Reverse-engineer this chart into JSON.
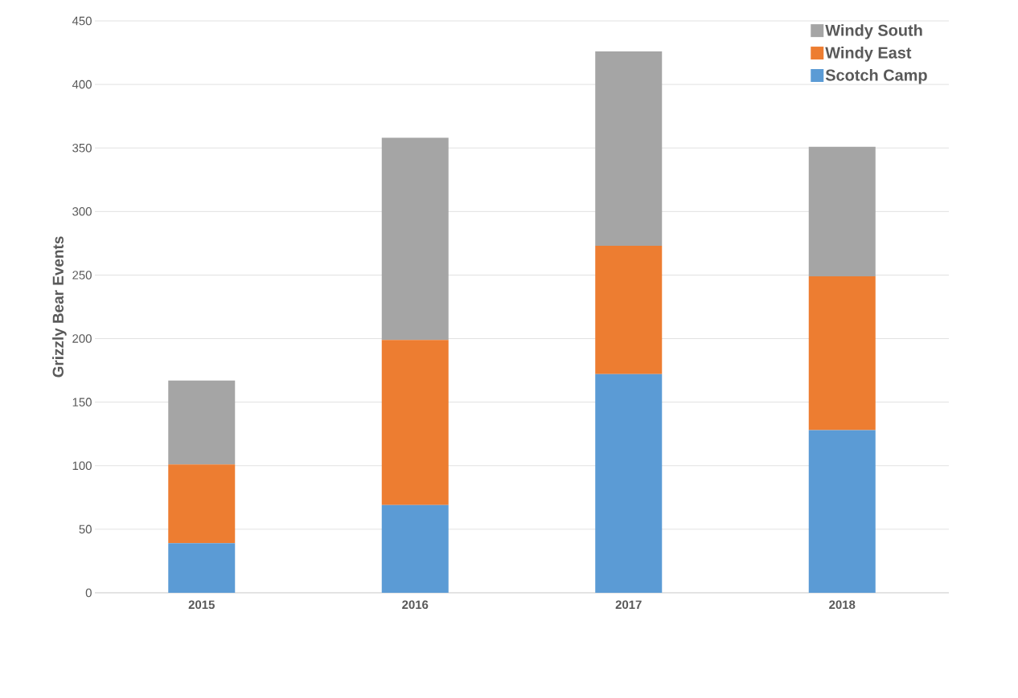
{
  "chart_data": {
    "type": "bar",
    "stacked": true,
    "ylabel": "Grizzly Bear Events",
    "categories": [
      "2015",
      "2016",
      "2017",
      "2018"
    ],
    "series": [
      {
        "name": "Scotch Camp",
        "color": "#5b9bd5",
        "values": [
          39,
          69,
          172,
          128
        ]
      },
      {
        "name": "Windy East",
        "color": "#ed7d31",
        "values": [
          62,
          130,
          101,
          121
        ]
      },
      {
        "name": "Windy South",
        "color": "#a5a5a5",
        "values": [
          66,
          159,
          153,
          102
        ]
      }
    ],
    "ylim": [
      0,
      450
    ],
    "yticks": [
      0,
      50,
      100,
      150,
      200,
      250,
      300,
      350,
      400,
      450
    ],
    "grid": "y",
    "legend": "top right"
  }
}
